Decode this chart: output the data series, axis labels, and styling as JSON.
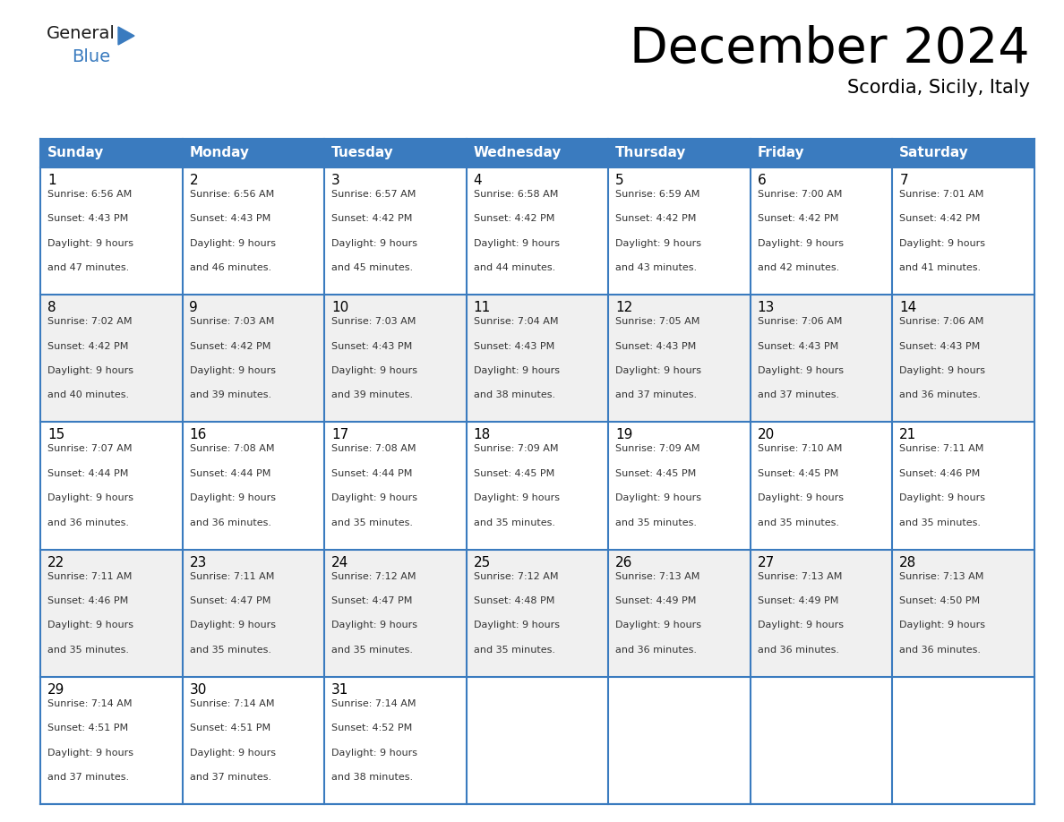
{
  "title": "December 2024",
  "subtitle": "Scordia, Sicily, Italy",
  "header_color": "#3a7bbf",
  "header_text_color": "#ffffff",
  "cell_bg_color": "#ffffff",
  "alt_cell_bg_color": "#f0f0f0",
  "border_color": "#3a7bbf",
  "day_headers": [
    "Sunday",
    "Monday",
    "Tuesday",
    "Wednesday",
    "Thursday",
    "Friday",
    "Saturday"
  ],
  "days": [
    {
      "day": 1,
      "col": 0,
      "row": 0,
      "sunrise": "6:56 AM",
      "sunset": "4:43 PM",
      "daylight_hours": 9,
      "daylight_minutes": 47
    },
    {
      "day": 2,
      "col": 1,
      "row": 0,
      "sunrise": "6:56 AM",
      "sunset": "4:43 PM",
      "daylight_hours": 9,
      "daylight_minutes": 46
    },
    {
      "day": 3,
      "col": 2,
      "row": 0,
      "sunrise": "6:57 AM",
      "sunset": "4:42 PM",
      "daylight_hours": 9,
      "daylight_minutes": 45
    },
    {
      "day": 4,
      "col": 3,
      "row": 0,
      "sunrise": "6:58 AM",
      "sunset": "4:42 PM",
      "daylight_hours": 9,
      "daylight_minutes": 44
    },
    {
      "day": 5,
      "col": 4,
      "row": 0,
      "sunrise": "6:59 AM",
      "sunset": "4:42 PM",
      "daylight_hours": 9,
      "daylight_minutes": 43
    },
    {
      "day": 6,
      "col": 5,
      "row": 0,
      "sunrise": "7:00 AM",
      "sunset": "4:42 PM",
      "daylight_hours": 9,
      "daylight_minutes": 42
    },
    {
      "day": 7,
      "col": 6,
      "row": 0,
      "sunrise": "7:01 AM",
      "sunset": "4:42 PM",
      "daylight_hours": 9,
      "daylight_minutes": 41
    },
    {
      "day": 8,
      "col": 0,
      "row": 1,
      "sunrise": "7:02 AM",
      "sunset": "4:42 PM",
      "daylight_hours": 9,
      "daylight_minutes": 40
    },
    {
      "day": 9,
      "col": 1,
      "row": 1,
      "sunrise": "7:03 AM",
      "sunset": "4:42 PM",
      "daylight_hours": 9,
      "daylight_minutes": 39
    },
    {
      "day": 10,
      "col": 2,
      "row": 1,
      "sunrise": "7:03 AM",
      "sunset": "4:43 PM",
      "daylight_hours": 9,
      "daylight_minutes": 39
    },
    {
      "day": 11,
      "col": 3,
      "row": 1,
      "sunrise": "7:04 AM",
      "sunset": "4:43 PM",
      "daylight_hours": 9,
      "daylight_minutes": 38
    },
    {
      "day": 12,
      "col": 4,
      "row": 1,
      "sunrise": "7:05 AM",
      "sunset": "4:43 PM",
      "daylight_hours": 9,
      "daylight_minutes": 37
    },
    {
      "day": 13,
      "col": 5,
      "row": 1,
      "sunrise": "7:06 AM",
      "sunset": "4:43 PM",
      "daylight_hours": 9,
      "daylight_minutes": 37
    },
    {
      "day": 14,
      "col": 6,
      "row": 1,
      "sunrise": "7:06 AM",
      "sunset": "4:43 PM",
      "daylight_hours": 9,
      "daylight_minutes": 36
    },
    {
      "day": 15,
      "col": 0,
      "row": 2,
      "sunrise": "7:07 AM",
      "sunset": "4:44 PM",
      "daylight_hours": 9,
      "daylight_minutes": 36
    },
    {
      "day": 16,
      "col": 1,
      "row": 2,
      "sunrise": "7:08 AM",
      "sunset": "4:44 PM",
      "daylight_hours": 9,
      "daylight_minutes": 36
    },
    {
      "day": 17,
      "col": 2,
      "row": 2,
      "sunrise": "7:08 AM",
      "sunset": "4:44 PM",
      "daylight_hours": 9,
      "daylight_minutes": 35
    },
    {
      "day": 18,
      "col": 3,
      "row": 2,
      "sunrise": "7:09 AM",
      "sunset": "4:45 PM",
      "daylight_hours": 9,
      "daylight_minutes": 35
    },
    {
      "day": 19,
      "col": 4,
      "row": 2,
      "sunrise": "7:09 AM",
      "sunset": "4:45 PM",
      "daylight_hours": 9,
      "daylight_minutes": 35
    },
    {
      "day": 20,
      "col": 5,
      "row": 2,
      "sunrise": "7:10 AM",
      "sunset": "4:45 PM",
      "daylight_hours": 9,
      "daylight_minutes": 35
    },
    {
      "day": 21,
      "col": 6,
      "row": 2,
      "sunrise": "7:11 AM",
      "sunset": "4:46 PM",
      "daylight_hours": 9,
      "daylight_minutes": 35
    },
    {
      "day": 22,
      "col": 0,
      "row": 3,
      "sunrise": "7:11 AM",
      "sunset": "4:46 PM",
      "daylight_hours": 9,
      "daylight_minutes": 35
    },
    {
      "day": 23,
      "col": 1,
      "row": 3,
      "sunrise": "7:11 AM",
      "sunset": "4:47 PM",
      "daylight_hours": 9,
      "daylight_minutes": 35
    },
    {
      "day": 24,
      "col": 2,
      "row": 3,
      "sunrise": "7:12 AM",
      "sunset": "4:47 PM",
      "daylight_hours": 9,
      "daylight_minutes": 35
    },
    {
      "day": 25,
      "col": 3,
      "row": 3,
      "sunrise": "7:12 AM",
      "sunset": "4:48 PM",
      "daylight_hours": 9,
      "daylight_minutes": 35
    },
    {
      "day": 26,
      "col": 4,
      "row": 3,
      "sunrise": "7:13 AM",
      "sunset": "4:49 PM",
      "daylight_hours": 9,
      "daylight_minutes": 36
    },
    {
      "day": 27,
      "col": 5,
      "row": 3,
      "sunrise": "7:13 AM",
      "sunset": "4:49 PM",
      "daylight_hours": 9,
      "daylight_minutes": 36
    },
    {
      "day": 28,
      "col": 6,
      "row": 3,
      "sunrise": "7:13 AM",
      "sunset": "4:50 PM",
      "daylight_hours": 9,
      "daylight_minutes": 36
    },
    {
      "day": 29,
      "col": 0,
      "row": 4,
      "sunrise": "7:14 AM",
      "sunset": "4:51 PM",
      "daylight_hours": 9,
      "daylight_minutes": 37
    },
    {
      "day": 30,
      "col": 1,
      "row": 4,
      "sunrise": "7:14 AM",
      "sunset": "4:51 PM",
      "daylight_hours": 9,
      "daylight_minutes": 37
    },
    {
      "day": 31,
      "col": 2,
      "row": 4,
      "sunrise": "7:14 AM",
      "sunset": "4:52 PM",
      "daylight_hours": 9,
      "daylight_minutes": 38
    }
  ],
  "num_rows": 5,
  "num_cols": 7,
  "text_color": "#000000",
  "small_font_size": 8.0,
  "day_num_font_size": 11,
  "header_font_size": 11,
  "title_font_size": 40,
  "subtitle_font_size": 15
}
